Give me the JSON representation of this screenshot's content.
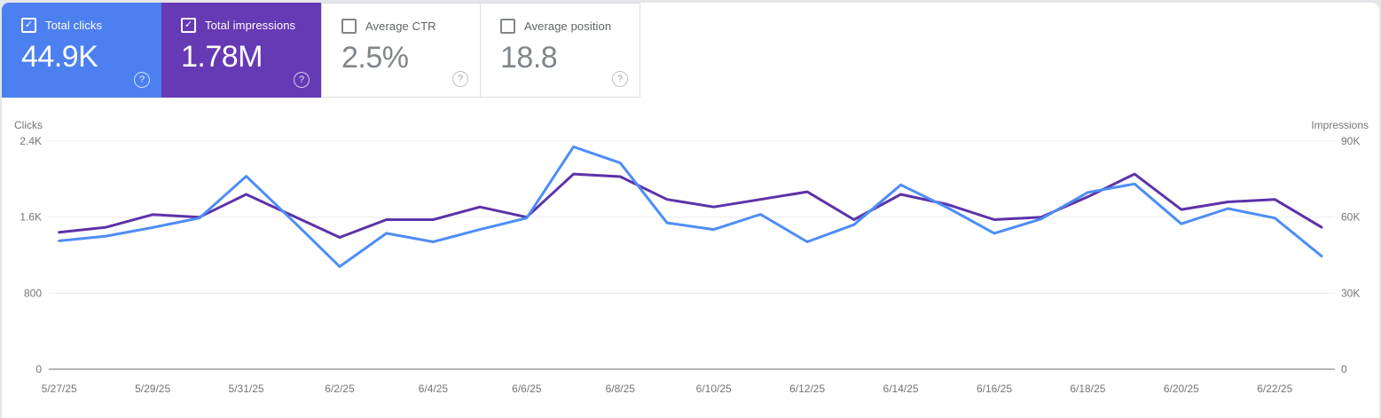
{
  "cards": [
    {
      "id": "total-clicks",
      "label": "Total clicks",
      "value": "44.9K",
      "checked": true,
      "filled": true,
      "bg": "#4c80f0"
    },
    {
      "id": "total-impressions",
      "label": "Total impressions",
      "value": "1.78M",
      "checked": true,
      "filled": true,
      "bg": "#6639b5"
    },
    {
      "id": "average-ctr",
      "label": "Average CTR",
      "value": "2.5%",
      "checked": false,
      "filled": false,
      "bg": "#ffffff"
    },
    {
      "id": "average-position",
      "label": "Average position",
      "value": "18.8",
      "checked": false,
      "filled": false,
      "bg": "#ffffff"
    }
  ],
  "chart_data": {
    "type": "line",
    "x": [
      "5/27/25",
      "5/28/25",
      "5/29/25",
      "5/30/25",
      "5/31/25",
      "6/1/25",
      "6/2/25",
      "6/3/25",
      "6/4/25",
      "6/5/25",
      "6/6/25",
      "6/7/25",
      "6/8/25",
      "6/9/25",
      "6/10/25",
      "6/11/25",
      "6/12/25",
      "6/13/25",
      "6/14/25",
      "6/15/25",
      "6/16/25",
      "6/17/25",
      "6/18/25",
      "6/19/25",
      "6/20/25",
      "6/21/25",
      "6/22/25",
      "6/23/25"
    ],
    "x_tick_labels": [
      "5/27/25",
      "5/29/25",
      "5/31/25",
      "6/2/25",
      "6/4/25",
      "6/6/25",
      "6/8/25",
      "6/10/25",
      "6/12/25",
      "6/14/25",
      "6/16/25",
      "6/18/25",
      "6/20/25",
      "6/22/25"
    ],
    "series": [
      {
        "name": "Clicks",
        "axis": "left",
        "color": "#4e8df6",
        "values": [
          1350,
          1400,
          1490,
          1590,
          2030,
          1560,
          1080,
          1430,
          1340,
          1470,
          1590,
          2340,
          2170,
          1540,
          1470,
          1630,
          1340,
          1520,
          1940,
          1700,
          1430,
          1580,
          1860,
          1950,
          1530,
          1690,
          1590,
          1190
        ]
      },
      {
        "name": "Impressions",
        "axis": "right",
        "color": "#5c33a8",
        "values": [
          54000,
          56000,
          61000,
          60000,
          69000,
          60500,
          52000,
          59000,
          59000,
          64000,
          60000,
          77000,
          76000,
          67000,
          64000,
          67000,
          70000,
          59000,
          69000,
          65000,
          59000,
          60000,
          68000,
          77000,
          63000,
          66000,
          67000,
          56000
        ]
      }
    ],
    "left_axis": {
      "title": "Clicks",
      "max": 2400,
      "ticks": [
        {
          "value": 0,
          "label": "0"
        },
        {
          "value": 800,
          "label": "800"
        },
        {
          "value": 1600,
          "label": "1.6K"
        },
        {
          "value": 2400,
          "label": "2.4K"
        }
      ]
    },
    "right_axis": {
      "title": "Impressions",
      "max": 90000,
      "ticks": [
        {
          "value": 0,
          "label": "0"
        },
        {
          "value": 30000,
          "label": "30K"
        },
        {
          "value": 60000,
          "label": "60K"
        },
        {
          "value": 90000,
          "label": "90K"
        }
      ]
    },
    "grid": true,
    "legend": "none"
  }
}
